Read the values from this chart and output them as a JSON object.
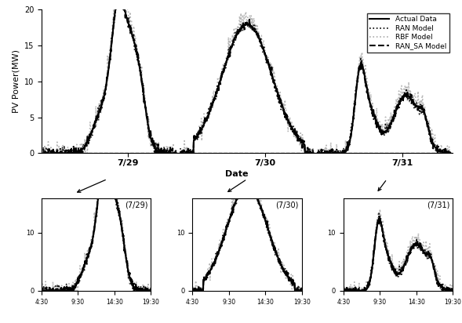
{
  "ylabel_main": "PV Power(MW)",
  "xlabel_main": "Date",
  "ylim_main": [
    0,
    20
  ],
  "yticks_main": [
    0,
    5,
    10,
    15,
    20
  ],
  "date_labels": [
    "7/29",
    "7/30",
    "7/31"
  ],
  "sub_titles": [
    "(7/29)",
    "(7/30)",
    "(7/31)"
  ],
  "xtick_labels": [
    "4:30",
    "9:30",
    "14:30",
    "19:30"
  ],
  "ylim_sub": [
    0,
    16
  ],
  "yticks_sub": [
    0,
    10
  ],
  "legend_labels": [
    "Actual Data",
    "RAN Model",
    "RBF Model",
    "RAN_SA Model"
  ],
  "color_actual": "#000000",
  "color_ran": "#000000",
  "color_rbf": "#aaaaaa",
  "color_ran_sa": "#000000",
  "lw_actual": 1.5,
  "lw_ran": 1.2,
  "lw_rbf": 1.2,
  "lw_ran_sa": 1.5
}
